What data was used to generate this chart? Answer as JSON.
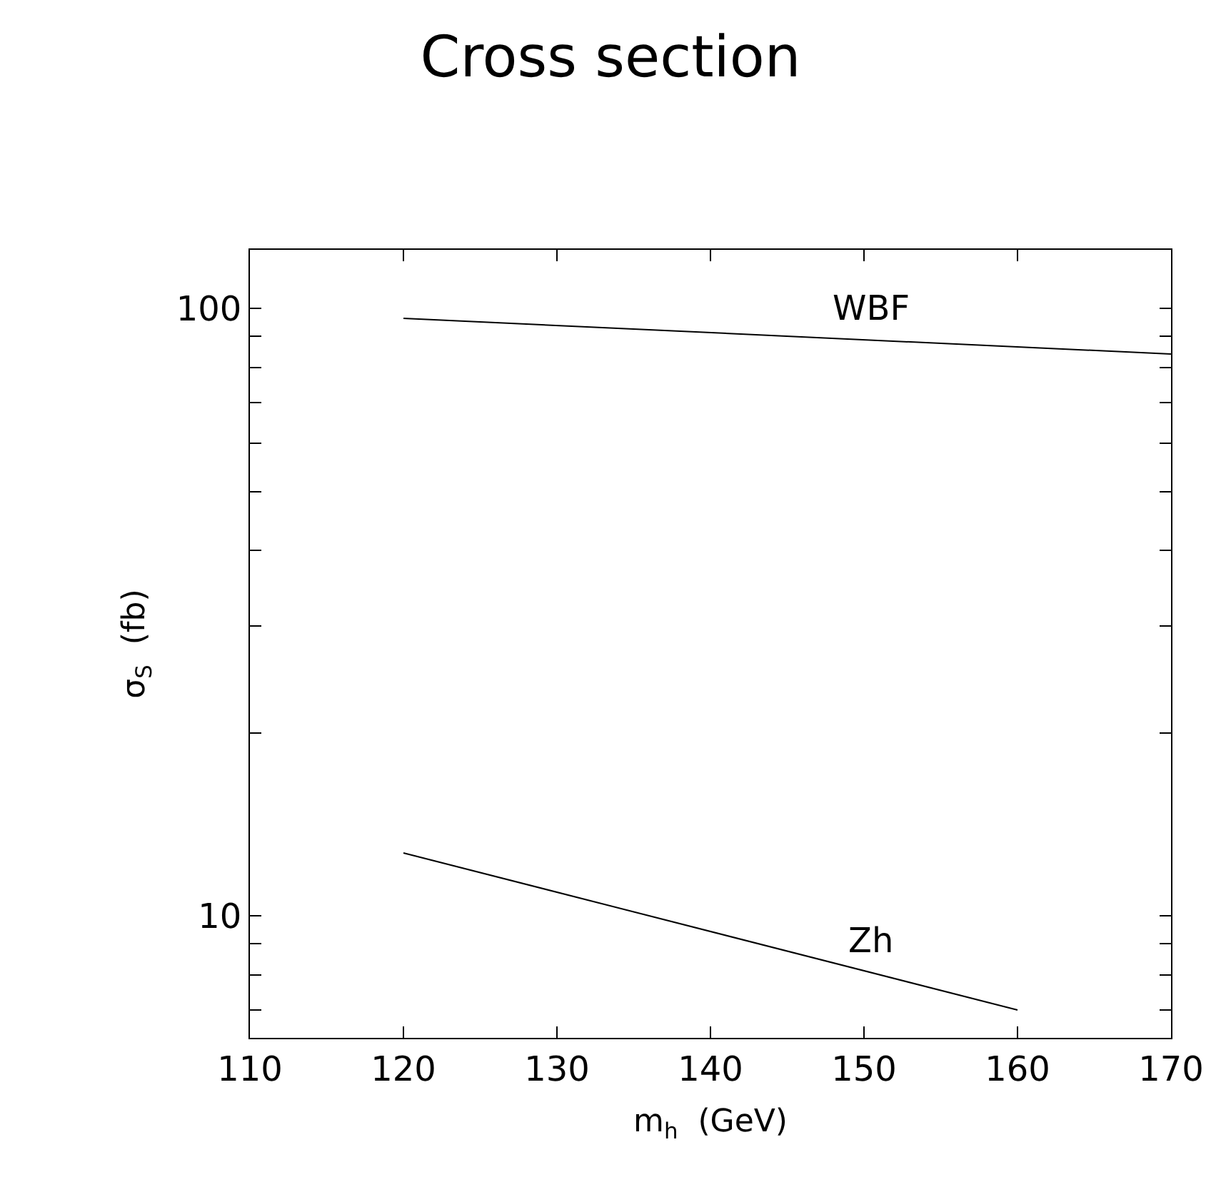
{
  "chart_data": {
    "type": "line",
    "title": "Cross section",
    "xlabel": "m$_{h}$  (GeV)",
    "ylabel": "σ$_{S}$  (fb)",
    "log": "y",
    "marker": "none",
    "line_style": "solid",
    "xlim": [
      110,
      170
    ],
    "xticks": [
      110,
      120,
      130,
      140,
      150,
      160,
      170
    ],
    "ylim": [
      6.3,
      125
    ],
    "yticks": [
      {
        "value": 7,
        "label": null
      },
      {
        "value": 8,
        "label": null
      },
      {
        "value": 9,
        "label": null
      },
      10,
      {
        "value": 20,
        "label": null
      },
      {
        "value": 30,
        "label": null
      },
      {
        "value": 40,
        "label": null
      },
      {
        "value": 50,
        "label": null
      },
      {
        "value": 60,
        "label": null
      },
      {
        "value": 70,
        "label": null
      },
      {
        "value": 80,
        "label": null
      },
      {
        "value": 90,
        "label": null
      },
      100
    ],
    "series": [
      {
        "color": "#000000",
        "x": [
          120,
          170
        ],
        "values": [
          96.4,
          84.2
        ]
      },
      {
        "color": "#000000",
        "x": [
          120,
          160
        ],
        "values": [
          12.7,
          7.0
        ]
      }
    ],
    "annotations": [
      {
        "text": "WBF",
        "x": 150.5,
        "y": 88.8
      },
      {
        "text": "Zh",
        "x": 150.5,
        "y": 8.07
      }
    ]
  }
}
